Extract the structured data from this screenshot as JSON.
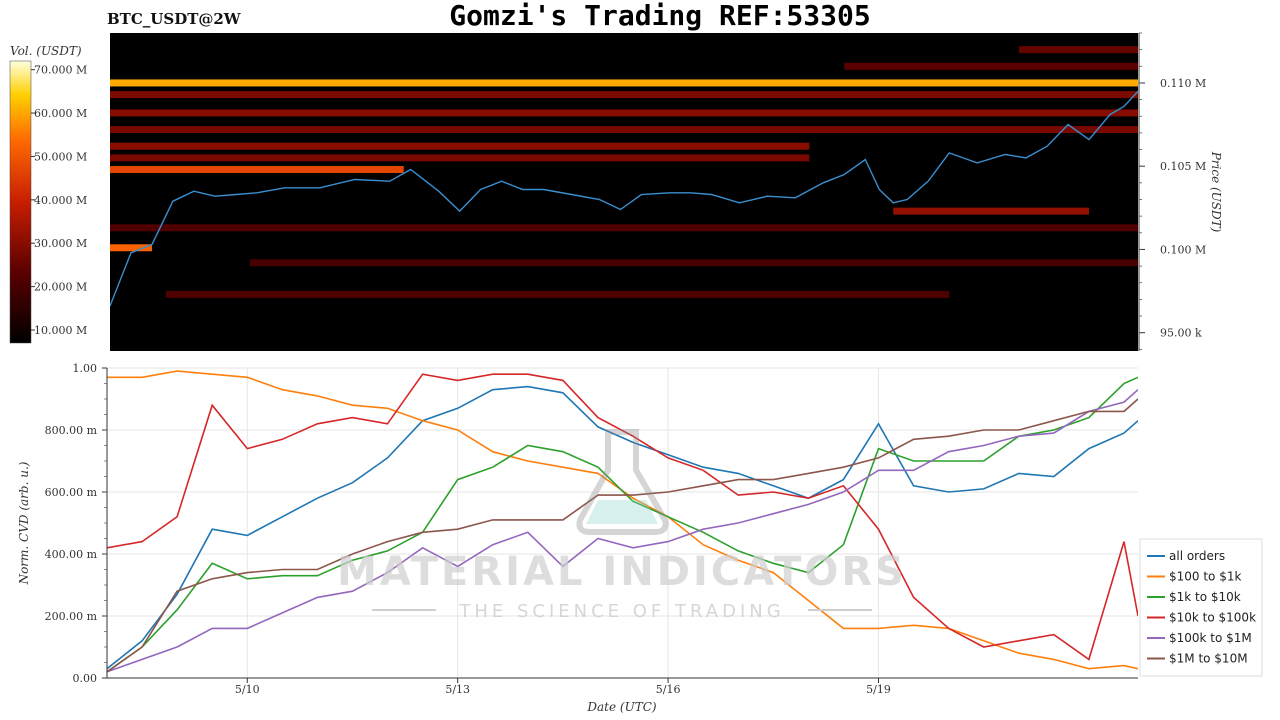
{
  "header": {
    "symbol": "BTC_USDT@2W",
    "title": "Gomzi's Trading REF:53305"
  },
  "watermark": {
    "main": "MATERIAL INDICATORS",
    "sub": "THE SCIENCE OF TRADING"
  },
  "chart_data": [
    {
      "type": "heatmap",
      "name": "order-book-heatmap",
      "colorbar": {
        "title": "Vol. (USDT)",
        "ticks": [
          "70.000 M",
          "60.000 M",
          "50.000 M",
          "40.000 M",
          "30.000 M",
          "20.000 M",
          "10.000 M"
        ],
        "tick_values": [
          70,
          60,
          50,
          40,
          30,
          20,
          10
        ],
        "range": [
          7,
          72
        ],
        "colorscale": [
          "#000000",
          "#5a0000",
          "#c81e00",
          "#ff6a00",
          "#ffd000",
          "#ffffe0"
        ]
      },
      "y_axis": {
        "title": "Price (USDT)",
        "side": "right",
        "ticks": [
          "0.110 M",
          "0.105 M",
          "0.100 M",
          "95.00 k"
        ],
        "tick_values": [
          110000,
          105000,
          100000,
          95000
        ],
        "range": [
          93900,
          113000
        ]
      },
      "x_range_days": [
        8.0,
        22.7
      ],
      "walls": [
        {
          "price": 110000,
          "from": 8.0,
          "to": 22.7,
          "level": 0.82
        },
        {
          "price": 104800,
          "from": 8.0,
          "to": 12.2,
          "level": 0.62
        },
        {
          "price": 100100,
          "from": 8.0,
          "to": 8.6,
          "level": 0.7
        },
        {
          "price": 109300,
          "from": 8.0,
          "to": 22.7,
          "level": 0.33
        },
        {
          "price": 108200,
          "from": 8.0,
          "to": 22.7,
          "level": 0.35
        },
        {
          "price": 107200,
          "from": 8.0,
          "to": 22.7,
          "level": 0.32
        },
        {
          "price": 106200,
          "from": 8.0,
          "to": 18.0,
          "level": 0.36
        },
        {
          "price": 105500,
          "from": 8.0,
          "to": 18.0,
          "level": 0.32
        },
        {
          "price": 102300,
          "from": 19.2,
          "to": 22.0,
          "level": 0.38
        },
        {
          "price": 101300,
          "from": 8.0,
          "to": 22.7,
          "level": 0.22
        },
        {
          "price": 99200,
          "from": 10.0,
          "to": 22.7,
          "level": 0.2
        },
        {
          "price": 97300,
          "from": 8.8,
          "to": 20.0,
          "level": 0.22
        },
        {
          "price": 111000,
          "from": 18.5,
          "to": 22.7,
          "level": 0.25
        },
        {
          "price": 112000,
          "from": 21.0,
          "to": 22.7,
          "level": 0.28
        }
      ],
      "price_series": {
        "name": "BTC price",
        "color": "#3a8fd0",
        "x": [
          8.0,
          8.3,
          8.6,
          8.9,
          9.2,
          9.5,
          9.8,
          10.1,
          10.5,
          11.0,
          11.5,
          12.0,
          12.3,
          12.7,
          13.0,
          13.3,
          13.6,
          13.9,
          14.2,
          14.6,
          15.0,
          15.3,
          15.6,
          16.0,
          16.3,
          16.6,
          17.0,
          17.4,
          17.8,
          18.2,
          18.5,
          18.8,
          19.0,
          19.2,
          19.4,
          19.7,
          20.0,
          20.4,
          20.8,
          21.1,
          21.4,
          21.7,
          22.0,
          22.3,
          22.5,
          22.7
        ],
        "y": [
          96600,
          99800,
          100300,
          102900,
          103500,
          103200,
          103300,
          103400,
          103700,
          103700,
          104200,
          104100,
          104800,
          103500,
          102300,
          103600,
          104100,
          103600,
          103600,
          103300,
          103000,
          102400,
          103300,
          103400,
          103400,
          103300,
          102800,
          103200,
          103100,
          104000,
          104500,
          105400,
          103600,
          102800,
          103000,
          104100,
          105800,
          105200,
          105700,
          105500,
          106200,
          107500,
          106600,
          108100,
          108600,
          109500
        ]
      }
    },
    {
      "type": "line",
      "name": "normalized-cvd",
      "xlabel": "Date (UTC)",
      "ylabel": "Norm. CVD (arb. u.)",
      "ylim": [
        0,
        1
      ],
      "xlim_days": [
        8.0,
        22.7
      ],
      "x_ticks": [
        {
          "label": "5/10",
          "value": 10
        },
        {
          "label": "5/13",
          "value": 13
        },
        {
          "label": "5/16",
          "value": 16
        },
        {
          "label": "5/19",
          "value": 19
        }
      ],
      "y_ticks": [
        {
          "label": "0.00",
          "value": 0
        },
        {
          "label": "200.00 m",
          "value": 0.2
        },
        {
          "label": "400.00 m",
          "value": 0.4
        },
        {
          "label": "600.00 m",
          "value": 0.6
        },
        {
          "label": "800.00 m",
          "value": 0.8
        },
        {
          "label": "1.00",
          "value": 1.0
        }
      ],
      "grid": true,
      "legend_position": "right",
      "x": [
        8.0,
        8.5,
        9.0,
        9.5,
        10.0,
        10.5,
        11.0,
        11.5,
        12.0,
        12.5,
        13.0,
        13.5,
        14.0,
        14.5,
        15.0,
        15.5,
        16.0,
        16.5,
        17.0,
        17.5,
        18.0,
        18.5,
        19.0,
        19.5,
        20.0,
        20.5,
        21.0,
        21.5,
        22.0,
        22.5,
        22.7
      ],
      "series": [
        {
          "name": "all orders",
          "color": "#1f77b4",
          "values": [
            0.03,
            0.12,
            0.27,
            0.48,
            0.46,
            0.52,
            0.58,
            0.63,
            0.71,
            0.83,
            0.87,
            0.93,
            0.94,
            0.92,
            0.81,
            0.76,
            0.72,
            0.68,
            0.66,
            0.62,
            0.58,
            0.64,
            0.82,
            0.62,
            0.6,
            0.61,
            0.66,
            0.65,
            0.74,
            0.79,
            0.83
          ]
        },
        {
          "name": "$100 to $1k",
          "color": "#ff7f0e",
          "values": [
            0.97,
            0.97,
            0.99,
            0.98,
            0.97,
            0.93,
            0.91,
            0.88,
            0.87,
            0.83,
            0.8,
            0.73,
            0.7,
            0.68,
            0.66,
            0.58,
            0.52,
            0.43,
            0.38,
            0.34,
            0.25,
            0.16,
            0.16,
            0.17,
            0.16,
            0.12,
            0.08,
            0.06,
            0.03,
            0.04,
            0.03
          ]
        },
        {
          "name": "$1k to $10k",
          "color": "#2ca02c",
          "values": [
            0.02,
            0.1,
            0.22,
            0.37,
            0.32,
            0.33,
            0.33,
            0.38,
            0.41,
            0.47,
            0.64,
            0.68,
            0.75,
            0.73,
            0.68,
            0.57,
            0.52,
            0.47,
            0.41,
            0.37,
            0.34,
            0.43,
            0.74,
            0.7,
            0.7,
            0.7,
            0.78,
            0.8,
            0.84,
            0.95,
            0.97
          ]
        },
        {
          "name": "$10k to $100k",
          "color": "#d62728",
          "values": [
            0.42,
            0.44,
            0.52,
            0.88,
            0.74,
            0.77,
            0.82,
            0.84,
            0.82,
            0.98,
            0.96,
            0.98,
            0.98,
            0.96,
            0.84,
            0.78,
            0.71,
            0.67,
            0.59,
            0.6,
            0.58,
            0.62,
            0.48,
            0.26,
            0.16,
            0.1,
            0.12,
            0.14,
            0.06,
            0.44,
            0.2
          ]
        },
        {
          "name": "$100k to $1M",
          "color": "#9467bd",
          "values": [
            0.02,
            0.06,
            0.1,
            0.16,
            0.16,
            0.21,
            0.26,
            0.28,
            0.34,
            0.42,
            0.36,
            0.43,
            0.47,
            0.36,
            0.45,
            0.42,
            0.44,
            0.48,
            0.5,
            0.53,
            0.56,
            0.6,
            0.67,
            0.67,
            0.73,
            0.75,
            0.78,
            0.79,
            0.86,
            0.89,
            0.93
          ]
        },
        {
          "name": "$1M to $10M",
          "color": "#8c564b",
          "values": [
            0.02,
            0.1,
            0.28,
            0.32,
            0.34,
            0.35,
            0.35,
            0.4,
            0.44,
            0.47,
            0.48,
            0.51,
            0.51,
            0.51,
            0.59,
            0.59,
            0.6,
            0.62,
            0.64,
            0.64,
            0.66,
            0.68,
            0.71,
            0.77,
            0.78,
            0.8,
            0.8,
            0.83,
            0.86,
            0.86,
            0.9
          ]
        }
      ]
    }
  ]
}
